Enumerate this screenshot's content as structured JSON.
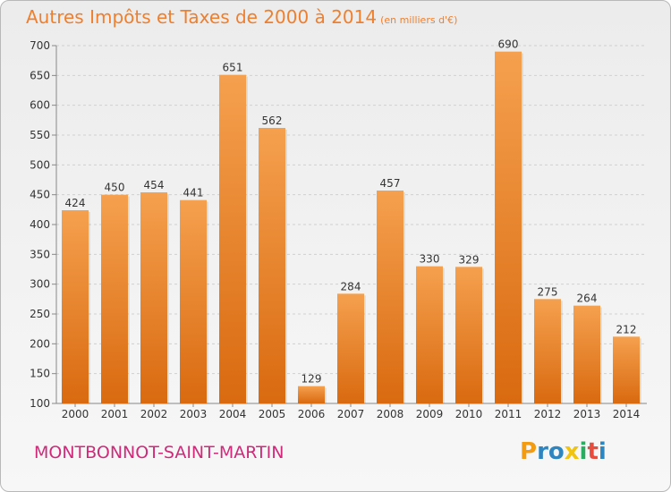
{
  "chart_data": {
    "type": "bar",
    "title": "Autres Impôts et Taxes de 2000 à 2014",
    "subtitle": "(en milliers d'€)",
    "xlabel": "",
    "ylabel": "",
    "categories": [
      "2000",
      "2001",
      "2002",
      "2003",
      "2004",
      "2005",
      "2006",
      "2007",
      "2008",
      "2009",
      "2010",
      "2011",
      "2012",
      "2013",
      "2014"
    ],
    "values": [
      424,
      450,
      454,
      441,
      651,
      562,
      129,
      284,
      457,
      330,
      329,
      690,
      275,
      264,
      212
    ],
    "data_labels": [
      "424",
      "450",
      "454",
      "441",
      "651",
      "562",
      "129",
      "284",
      "457",
      "330",
      "329",
      "690",
      "275",
      "264",
      "212"
    ],
    "ylim": [
      100,
      700
    ],
    "yticks": [
      100,
      150,
      200,
      250,
      300,
      350,
      400,
      450,
      500,
      550,
      600,
      650,
      700
    ],
    "grid": true,
    "bar_color_top": "#f5a04e",
    "bar_color_bottom": "#d96a10"
  },
  "footer": {
    "commune": "MONTBONNOT-SAINT-MARTIN",
    "logo_letters": [
      "P",
      "r",
      "o",
      "x",
      "i",
      "t",
      "i"
    ],
    "logo_colors": [
      "#f39c12",
      "#2e86c1",
      "#2e86c1",
      "#f1c40f",
      "#27ae60",
      "#e74c3c",
      "#2e86c1"
    ]
  }
}
